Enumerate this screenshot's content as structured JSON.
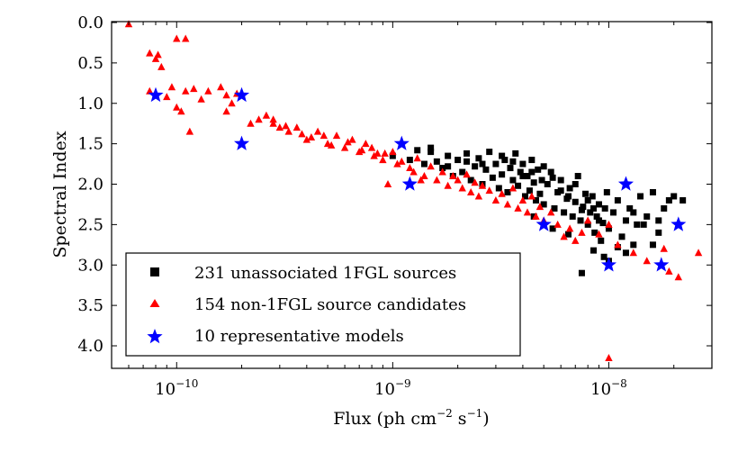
{
  "chart_data": {
    "type": "scatter",
    "title": "",
    "xlabel": "Flux (ph cm",
    "xlabel_exp1": "−2",
    "xlabel_mid": " s",
    "xlabel_exp2": "−1",
    "xlabel_end": ")",
    "ylabel": "Spectral Index",
    "x_scale": "log",
    "xlim": [
      5e-11,
      3e-08
    ],
    "ylim": [
      4.3,
      0.0
    ],
    "y_inverted": true,
    "x_ticks": [
      {
        "base": "10",
        "exp": "−10",
        "value": 1e-10
      },
      {
        "base": "10",
        "exp": "−9",
        "value": 1e-09
      },
      {
        "base": "10",
        "exp": "−8",
        "value": 1e-08
      }
    ],
    "y_ticks": [
      "0.0",
      "0.5",
      "1.0",
      "1.5",
      "2.0",
      "2.5",
      "3.0",
      "3.5",
      "4.0"
    ],
    "legend_position": "lower-left",
    "series": [
      {
        "name": "231 unassociated 1FGL sources",
        "marker": "square",
        "color": "#000000",
        "points": [
          [
            1e-09,
            1.65
          ],
          [
            1.2e-09,
            1.7
          ],
          [
            1.3e-09,
            1.58
          ],
          [
            1.4e-09,
            1.75
          ],
          [
            1.5e-09,
            1.55
          ],
          [
            1.6e-09,
            1.72
          ],
          [
            1.7e-09,
            1.8
          ],
          [
            1.8e-09,
            1.65
          ],
          [
            1.9e-09,
            1.9
          ],
          [
            2e-09,
            1.7
          ],
          [
            2.1e-09,
            1.85
          ],
          [
            2.2e-09,
            1.62
          ],
          [
            2.3e-09,
            1.95
          ],
          [
            2.4e-09,
            1.78
          ],
          [
            2.5e-09,
            1.68
          ],
          [
            2.6e-09,
            2.0
          ],
          [
            2.7e-09,
            1.82
          ],
          [
            2.8e-09,
            1.6
          ],
          [
            2.9e-09,
            1.92
          ],
          [
            3e-09,
            1.75
          ],
          [
            3.1e-09,
            2.05
          ],
          [
            3.2e-09,
            1.88
          ],
          [
            3.3e-09,
            1.7
          ],
          [
            3.4e-09,
            2.1
          ],
          [
            3.5e-09,
            1.8
          ],
          [
            3.6e-09,
            1.95
          ],
          [
            3.7e-09,
            1.62
          ],
          [
            3.8e-09,
            2.02
          ],
          [
            3.9e-09,
            1.85
          ],
          [
            4e-09,
            1.75
          ],
          [
            4.1e-09,
            2.15
          ],
          [
            4.2e-09,
            1.9
          ],
          [
            4.3e-09,
            2.08
          ],
          [
            4.4e-09,
            1.7
          ],
          [
            4.5e-09,
            1.98
          ],
          [
            4.6e-09,
            2.2
          ],
          [
            4.7e-09,
            1.82
          ],
          [
            4.8e-09,
            2.12
          ],
          [
            4.9e-09,
            1.95
          ],
          [
            5e-09,
            2.25
          ],
          [
            5.2e-09,
            2.0
          ],
          [
            5.4e-09,
            1.85
          ],
          [
            5.6e-09,
            2.3
          ],
          [
            5.8e-09,
            2.1
          ],
          [
            6e-09,
            1.95
          ],
          [
            6.2e-09,
            2.35
          ],
          [
            6.4e-09,
            2.18
          ],
          [
            6.6e-09,
            2.05
          ],
          [
            6.8e-09,
            2.4
          ],
          [
            7e-09,
            2.22
          ],
          [
            7.2e-09,
            1.9
          ],
          [
            7.4e-09,
            2.45
          ],
          [
            7.6e-09,
            2.28
          ],
          [
            7.8e-09,
            2.12
          ],
          [
            8e-09,
            2.5
          ],
          [
            8.2e-09,
            2.35
          ],
          [
            8.4e-09,
            2.15
          ],
          [
            8.6e-09,
            2.6
          ],
          [
            8.8e-09,
            2.4
          ],
          [
            9e-09,
            2.25
          ],
          [
            9.2e-09,
            2.7
          ],
          [
            9.4e-09,
            2.48
          ],
          [
            9.6e-09,
            2.3
          ],
          [
            9.8e-09,
            2.1
          ],
          [
            1e-08,
            2.55
          ],
          [
            1.05e-08,
            2.35
          ],
          [
            1.1e-08,
            2.2
          ],
          [
            1.15e-08,
            2.65
          ],
          [
            1.2e-08,
            2.45
          ],
          [
            1.25e-08,
            2.3
          ],
          [
            1.3e-08,
            2.75
          ],
          [
            1.35e-08,
            2.5
          ],
          [
            1.4e-08,
            2.15
          ],
          [
            1.5e-08,
            2.4
          ],
          [
            1.6e-08,
            2.1
          ],
          [
            1.7e-08,
            2.6
          ],
          [
            1.8e-08,
            2.3
          ],
          [
            1.9e-08,
            2.2
          ],
          [
            2e-08,
            2.15
          ],
          [
            2.2e-08,
            2.2
          ],
          [
            7.5e-09,
            3.1
          ],
          [
            1e-08,
            2.95
          ],
          [
            1.2e-08,
            2.85
          ],
          [
            1.6e-08,
            2.75
          ],
          [
            5.5e-09,
            2.55
          ],
          [
            6.5e-09,
            2.62
          ],
          [
            8.5e-09,
            2.82
          ],
          [
            9.5e-09,
            2.9
          ],
          [
            1.1e-08,
            2.78
          ],
          [
            4.5e-09,
            2.4
          ],
          [
            1.5e-09,
            1.6
          ],
          [
            1.8e-09,
            1.78
          ],
          [
            2.2e-09,
            1.72
          ],
          [
            2.6e-09,
            1.75
          ],
          [
            3.2e-09,
            1.65
          ],
          [
            3.6e-09,
            1.72
          ],
          [
            4e-09,
            1.9
          ],
          [
            4.4e-09,
            1.85
          ],
          [
            5e-09,
            1.78
          ],
          [
            5.5e-09,
            1.92
          ],
          [
            6e-09,
            2.08
          ],
          [
            6.5e-09,
            2.15
          ],
          [
            7e-09,
            2.0
          ],
          [
            7.5e-09,
            2.32
          ],
          [
            8e-09,
            2.2
          ],
          [
            8.5e-09,
            2.3
          ],
          [
            9e-09,
            2.45
          ],
          [
            1.3e-08,
            2.35
          ],
          [
            1.45e-08,
            2.5
          ],
          [
            1.7e-08,
            2.45
          ]
        ]
      },
      {
        "name": "154 non-1FGL source candidates",
        "marker": "triangle",
        "color": "#ff0000",
        "points": [
          [
            6e-11,
            0.02
          ],
          [
            7.5e-11,
            0.38
          ],
          [
            8e-11,
            0.45
          ],
          [
            8.5e-11,
            0.55
          ],
          [
            8.2e-11,
            0.4
          ],
          [
            1e-10,
            0.2
          ],
          [
            1.1e-10,
            0.2
          ],
          [
            7.5e-11,
            0.85
          ],
          [
            9e-11,
            0.92
          ],
          [
            9.5e-11,
            0.8
          ],
          [
            1e-10,
            1.05
          ],
          [
            1.05e-10,
            1.1
          ],
          [
            1.1e-10,
            0.85
          ],
          [
            1.2e-10,
            0.82
          ],
          [
            1.3e-10,
            0.95
          ],
          [
            1.4e-10,
            0.85
          ],
          [
            1.15e-10,
            1.35
          ],
          [
            1.6e-10,
            0.8
          ],
          [
            1.7e-10,
            0.9
          ],
          [
            1.8e-10,
            1.0
          ],
          [
            1.9e-10,
            0.88
          ],
          [
            1.7e-10,
            1.1
          ],
          [
            2.2e-10,
            1.25
          ],
          [
            2.4e-10,
            1.2
          ],
          [
            2.6e-10,
            1.15
          ],
          [
            2.8e-10,
            1.25
          ],
          [
            3e-10,
            1.3
          ],
          [
            3.3e-10,
            1.35
          ],
          [
            3.6e-10,
            1.3
          ],
          [
            4e-10,
            1.45
          ],
          [
            4.5e-10,
            1.35
          ],
          [
            5e-10,
            1.5
          ],
          [
            5.5e-10,
            1.4
          ],
          [
            6e-10,
            1.55
          ],
          [
            6.5e-10,
            1.45
          ],
          [
            7e-10,
            1.6
          ],
          [
            7.5e-10,
            1.5
          ],
          [
            8e-10,
            1.55
          ],
          [
            8.5e-10,
            1.62
          ],
          [
            9e-10,
            1.7
          ],
          [
            9.5e-10,
            2.0
          ],
          [
            1e-09,
            1.6
          ],
          [
            1.1e-09,
            1.72
          ],
          [
            1.2e-09,
            1.8
          ],
          [
            1.3e-09,
            1.68
          ],
          [
            1.4e-09,
            1.9
          ],
          [
            1.5e-09,
            1.78
          ],
          [
            1.6e-09,
            1.95
          ],
          [
            1.7e-09,
            1.85
          ],
          [
            1.8e-09,
            2.02
          ],
          [
            1.9e-09,
            1.9
          ],
          [
            2e-09,
            1.95
          ],
          [
            2.1e-09,
            2.05
          ],
          [
            2.2e-09,
            1.88
          ],
          [
            2.3e-09,
            2.1
          ],
          [
            2.4e-09,
            1.98
          ],
          [
            2.5e-09,
            2.15
          ],
          [
            2.6e-09,
            2.02
          ],
          [
            2.8e-09,
            2.08
          ],
          [
            3e-09,
            2.2
          ],
          [
            3.2e-09,
            2.12
          ],
          [
            3.4e-09,
            2.25
          ],
          [
            3.6e-09,
            2.05
          ],
          [
            3.8e-09,
            2.3
          ],
          [
            4e-09,
            2.2
          ],
          [
            4.2e-09,
            2.35
          ],
          [
            4.4e-09,
            2.15
          ],
          [
            4.6e-09,
            2.4
          ],
          [
            4.8e-09,
            2.28
          ],
          [
            5e-09,
            2.45
          ],
          [
            5.4e-09,
            2.35
          ],
          [
            5.8e-09,
            2.5
          ],
          [
            6.2e-09,
            2.65
          ],
          [
            6.6e-09,
            2.55
          ],
          [
            7e-09,
            2.7
          ],
          [
            7.5e-09,
            2.6
          ],
          [
            8e-09,
            2.45
          ],
          [
            9e-09,
            2.62
          ],
          [
            1e-08,
            2.5
          ],
          [
            1.1e-08,
            2.75
          ],
          [
            1.3e-08,
            2.85
          ],
          [
            1.5e-08,
            2.95
          ],
          [
            1.8e-08,
            2.8
          ],
          [
            1.9e-08,
            3.08
          ],
          [
            2.1e-08,
            3.15
          ],
          [
            2.6e-08,
            2.85
          ],
          [
            1e-08,
            4.15
          ],
          [
            2.8e-10,
            1.2
          ],
          [
            3.2e-10,
            1.28
          ],
          [
            3.8e-10,
            1.38
          ],
          [
            4.2e-10,
            1.42
          ],
          [
            4.8e-10,
            1.4
          ],
          [
            5.2e-10,
            1.52
          ],
          [
            6.2e-10,
            1.48
          ],
          [
            7.2e-10,
            1.58
          ],
          [
            8.2e-10,
            1.65
          ],
          [
            9.2e-10,
            1.62
          ],
          [
            1.05e-09,
            1.75
          ],
          [
            1.25e-09,
            1.85
          ],
          [
            1.35e-09,
            1.95
          ]
        ]
      },
      {
        "name": "10 representative models",
        "marker": "star",
        "color": "#0000ff",
        "points": [
          [
            8e-11,
            0.9
          ],
          [
            2e-10,
            0.9
          ],
          [
            2e-10,
            1.5
          ],
          [
            1.1e-09,
            1.5
          ],
          [
            1.2e-09,
            2.0
          ],
          [
            5e-09,
            2.5
          ],
          [
            1e-08,
            3.0
          ],
          [
            1.2e-08,
            2.0
          ],
          [
            1.75e-08,
            3.0
          ],
          [
            2.1e-08,
            2.5
          ]
        ]
      }
    ]
  }
}
